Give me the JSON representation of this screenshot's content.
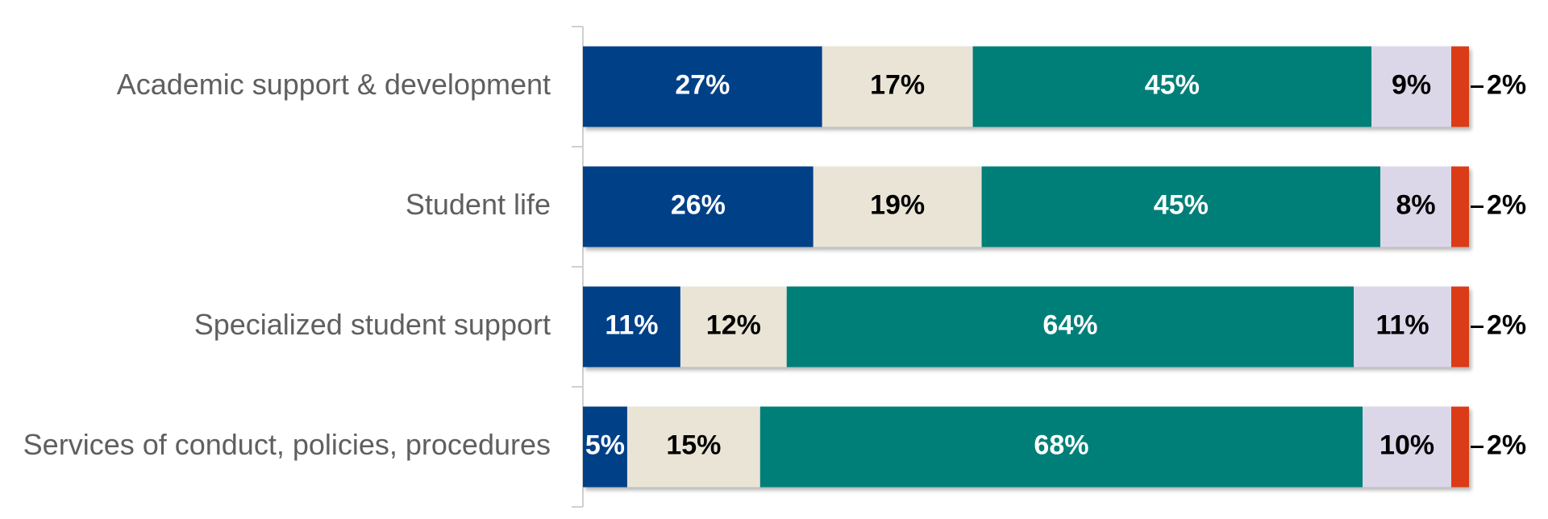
{
  "chart_data": {
    "type": "bar",
    "orientation": "horizontal",
    "stacked": true,
    "percent_stacked": true,
    "categories": [
      "Academic support & development",
      "Student life",
      "Specialized student support",
      "Services of conduct, policies, procedures"
    ],
    "series": [
      {
        "color": "#003f87",
        "label_color": "#ffffff",
        "values": [
          27,
          26,
          11,
          5
        ],
        "labels": [
          "27%",
          "26%",
          "11%",
          "5%"
        ]
      },
      {
        "color": "#e9e4d6",
        "label_color": "#000000",
        "values": [
          17,
          19,
          12,
          15
        ],
        "labels": [
          "17%",
          "19%",
          "12%",
          "15%"
        ]
      },
      {
        "color": "#067f78",
        "label_color": "#ffffff",
        "values": [
          45,
          45,
          64,
          68
        ],
        "labels": [
          "45%",
          "45%",
          "64%",
          "68%"
        ]
      },
      {
        "color": "#dcd7e8",
        "label_color": "#000000",
        "values": [
          9,
          8,
          11,
          10
        ],
        "labels": [
          "9%",
          "8%",
          "11%",
          "10%"
        ]
      },
      {
        "color": "#db3a16",
        "label_color": "#000000",
        "values": [
          2,
          2,
          2,
          2
        ],
        "labels": [
          "2%",
          "2%",
          "2%",
          "2%"
        ],
        "label_outside": true
      }
    ],
    "title": "",
    "xlabel": "",
    "ylabel": "",
    "legend": "none",
    "grid": false
  }
}
